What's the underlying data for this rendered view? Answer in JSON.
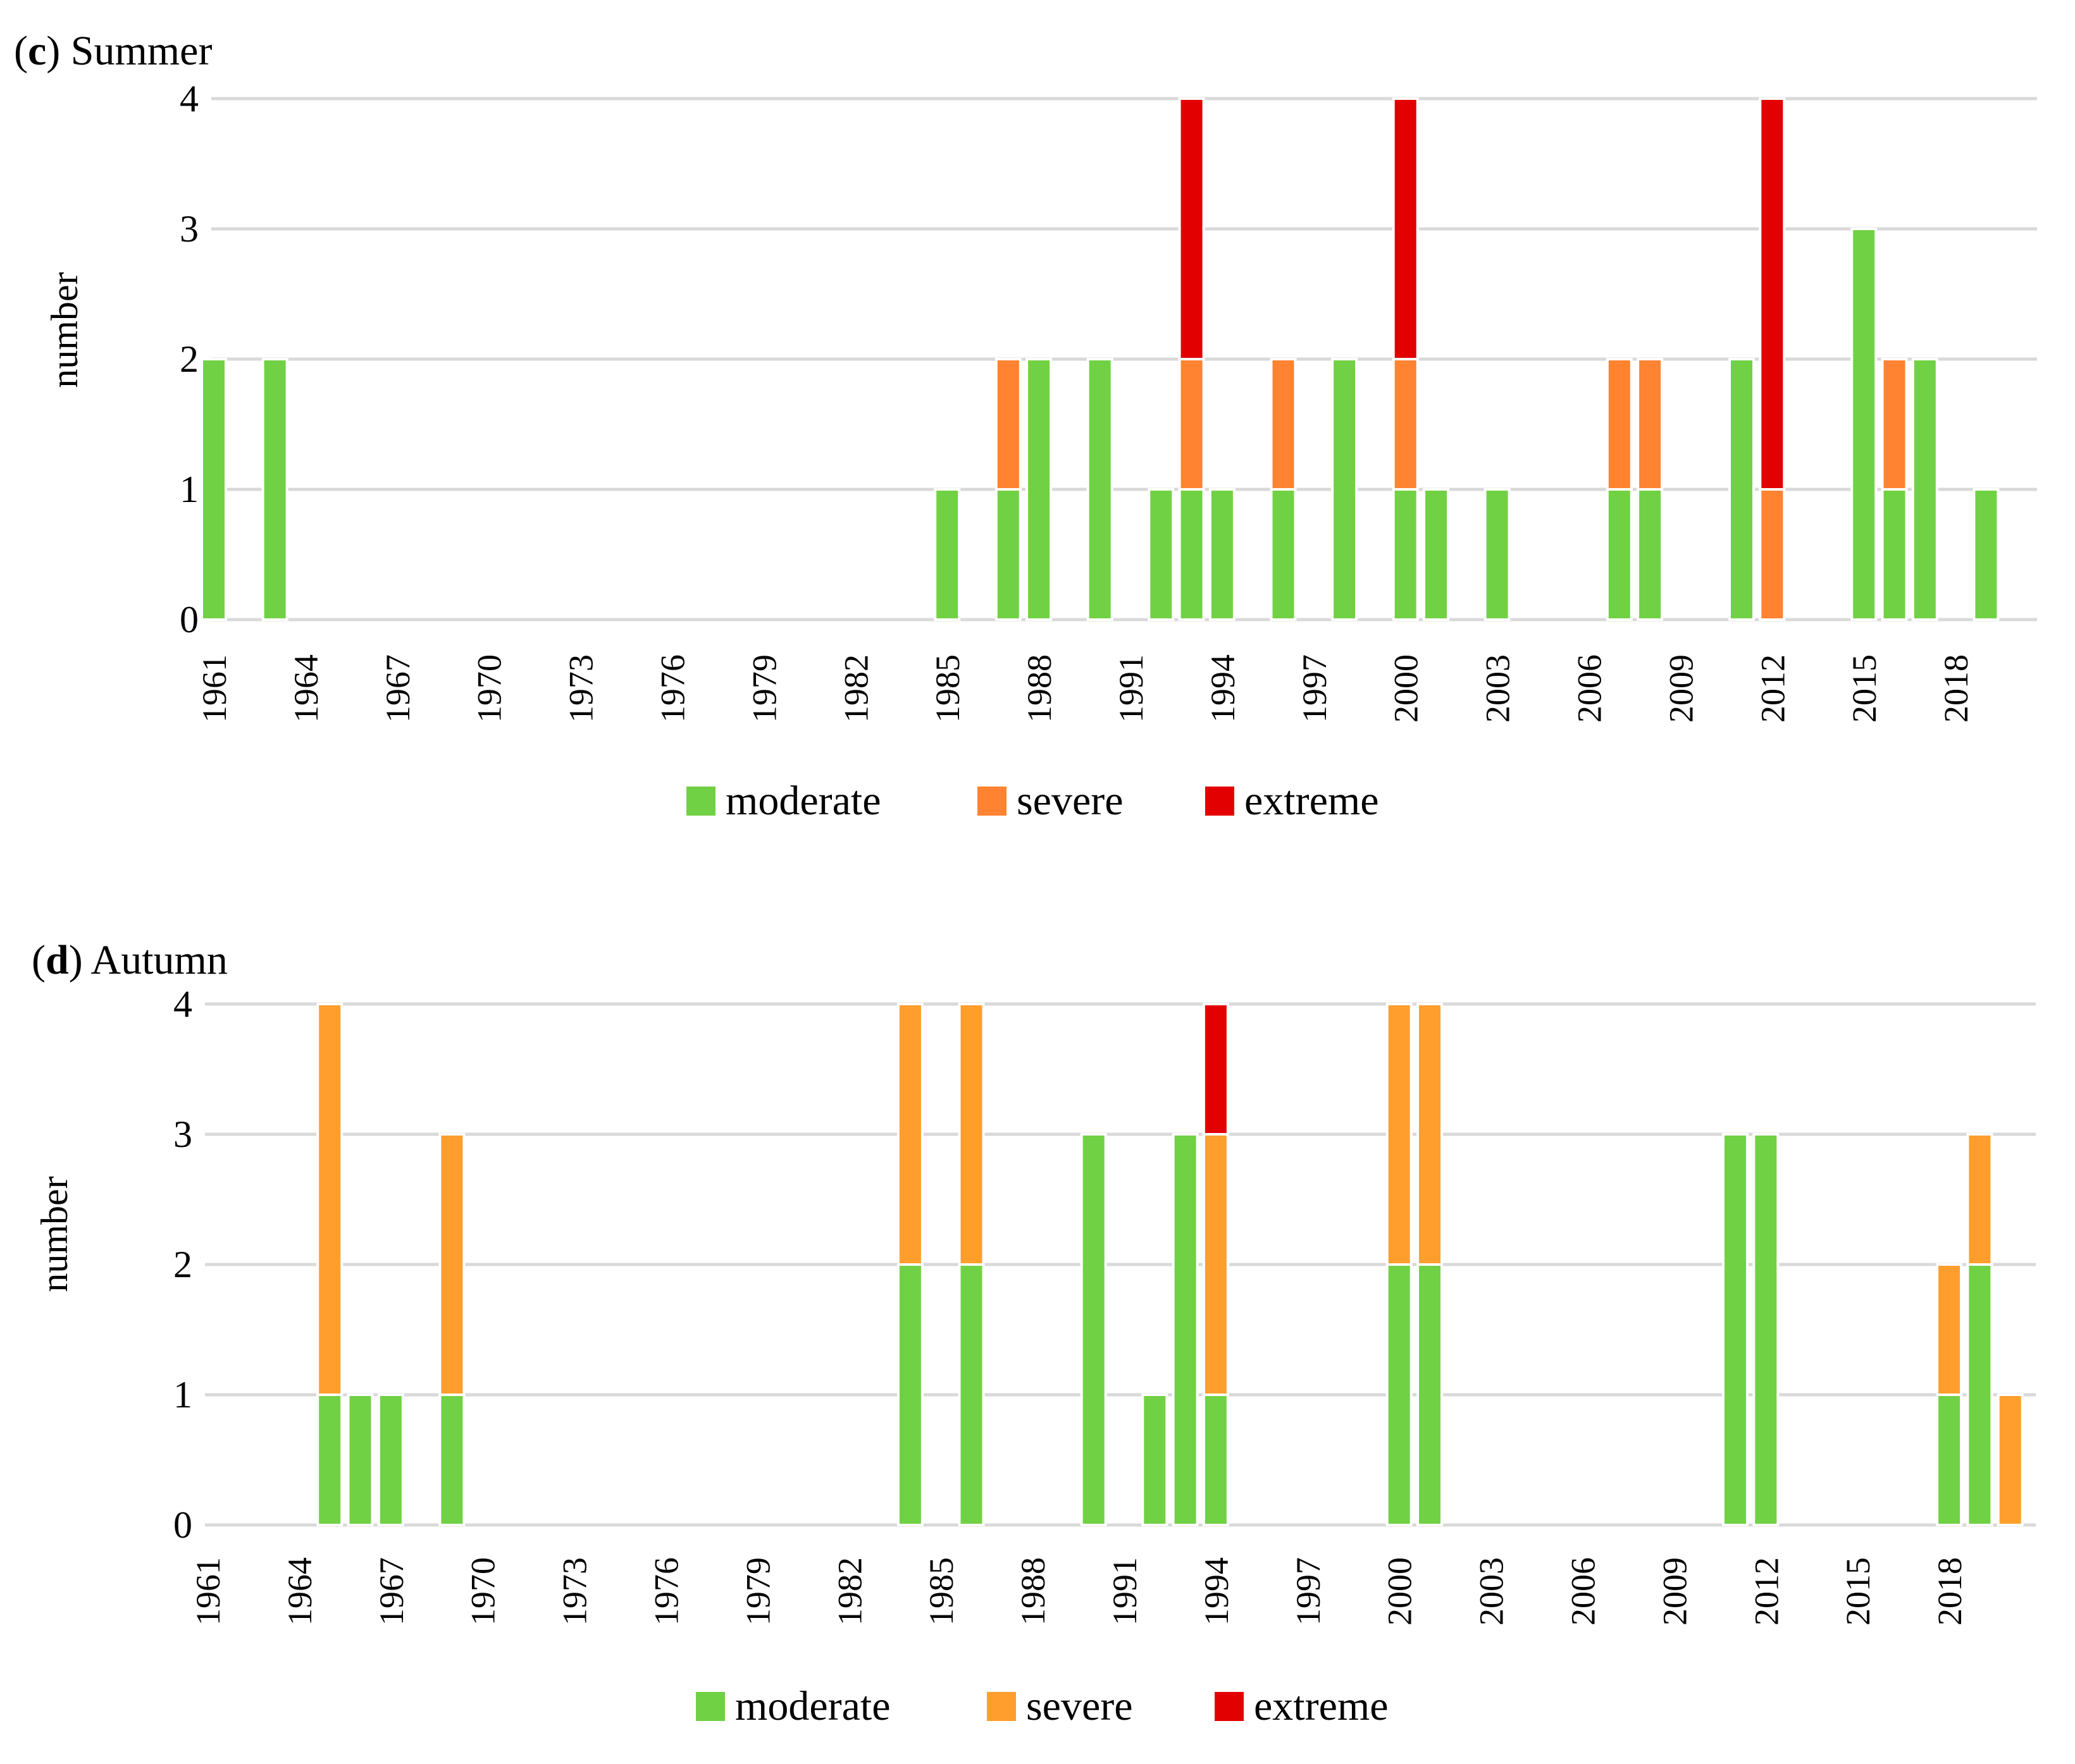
{
  "colors": {
    "moderate": "#71d144",
    "severe_c": "#ff8330",
    "severe_d": "#ff9e2d",
    "extreme": "#e30000",
    "grid": "#d9d9d9"
  },
  "chart_data": [
    {
      "type": "bar",
      "stacked": true,
      "panel": "c",
      "title": "Summer",
      "xlabel": "",
      "ylabel": "number",
      "ylim": [
        0,
        4
      ],
      "yticks": [
        0,
        1,
        2,
        3,
        4
      ],
      "xtick_labels": [
        "1961",
        "1964",
        "1967",
        "1970",
        "1973",
        "1976",
        "1979",
        "1982",
        "1985",
        "1988",
        "1991",
        "1994",
        "1997",
        "2000",
        "2003",
        "2006",
        "2009",
        "2012",
        "2015",
        "2018"
      ],
      "legend": [
        "moderate",
        "severe",
        "extreme"
      ],
      "legend_position": "bottom",
      "series": [
        {
          "name": "moderate",
          "color_key": "moderate",
          "points": [
            [
              0,
              2
            ],
            [
              2,
              2
            ],
            [
              24,
              1
            ],
            [
              26,
              1
            ],
            [
              27,
              2
            ],
            [
              29,
              2
            ],
            [
              31,
              1
            ],
            [
              32,
              1
            ],
            [
              33,
              1
            ],
            [
              35,
              1
            ],
            [
              37,
              2
            ],
            [
              39,
              1
            ],
            [
              40,
              1
            ],
            [
              42,
              1
            ],
            [
              46,
              1
            ],
            [
              47,
              1
            ],
            [
              50,
              2
            ],
            [
              54,
              3
            ],
            [
              55,
              1
            ],
            [
              56,
              2
            ],
            [
              58,
              1
            ]
          ]
        },
        {
          "name": "severe",
          "color_key": "severe_c",
          "points": [
            [
              26,
              1
            ],
            [
              32,
              1
            ],
            [
              35,
              1
            ],
            [
              39,
              1
            ],
            [
              46,
              1
            ],
            [
              47,
              1
            ],
            [
              51,
              1
            ],
            [
              55,
              1
            ]
          ]
        },
        {
          "name": "extreme",
          "color_key": "extreme",
          "points": [
            [
              32,
              2
            ],
            [
              39,
              2
            ],
            [
              51,
              3
            ]
          ]
        }
      ]
    },
    {
      "type": "bar",
      "stacked": true,
      "panel": "d",
      "title": "Autumn",
      "xlabel": "",
      "ylabel": "number",
      "ylim": [
        0,
        4
      ],
      "yticks": [
        0,
        1,
        2,
        3,
        4
      ],
      "xtick_labels": [
        "1961",
        "1964",
        "1967",
        "1970",
        "1973",
        "1976",
        "1979",
        "1982",
        "1985",
        "1988",
        "1991",
        "1994",
        "1997",
        "2000",
        "2003",
        "2006",
        "2009",
        "2012",
        "2015",
        "2018"
      ],
      "legend": [
        "moderate",
        "severe",
        "extreme"
      ],
      "legend_position": "bottom",
      "series": [
        {
          "name": "moderate",
          "color_key": "moderate",
          "points": [
            [
              4,
              1
            ],
            [
              5,
              1
            ],
            [
              6,
              1
            ],
            [
              8,
              1
            ],
            [
              23,
              2
            ],
            [
              25,
              2
            ],
            [
              29,
              3
            ],
            [
              31,
              1
            ],
            [
              32,
              3
            ],
            [
              33,
              1
            ],
            [
              39,
              2
            ],
            [
              40,
              2
            ],
            [
              50,
              3
            ],
            [
              51,
              3
            ],
            [
              57,
              1
            ],
            [
              58,
              2
            ]
          ]
        },
        {
          "name": "severe",
          "color_key": "severe_d",
          "points": [
            [
              4,
              3
            ],
            [
              8,
              2
            ],
            [
              23,
              2
            ],
            [
              25,
              2
            ],
            [
              33,
              2
            ],
            [
              39,
              2
            ],
            [
              40,
              2
            ],
            [
              57,
              1
            ],
            [
              58,
              1
            ],
            [
              59,
              1
            ]
          ]
        },
        {
          "name": "extreme",
          "color_key": "extreme",
          "points": [
            [
              33,
              1
            ]
          ]
        }
      ]
    }
  ]
}
